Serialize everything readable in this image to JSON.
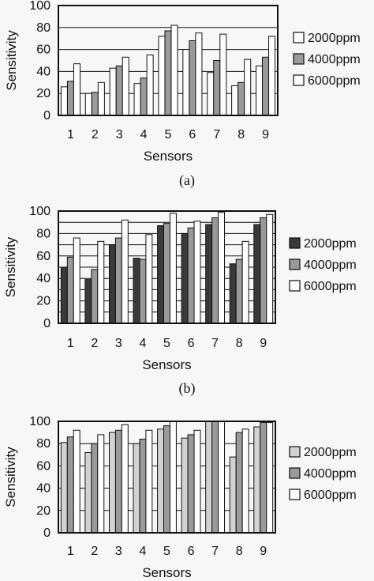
{
  "legend_entries": [
    "2000ppm",
    "4000ppm",
    "6000ppm"
  ],
  "colors": {
    "dark": "#3a3a3a",
    "gray": "#9a9a9a",
    "light": "#d2d2d2",
    "white": "#ffffff",
    "ink": "#111111"
  },
  "chart_data": [
    {
      "type": "bar",
      "panel_label": "(a)",
      "xlabel": "Sensors",
      "ylabel": "Sensitivity",
      "categories": [
        "1",
        "2",
        "3",
        "4",
        "5",
        "6",
        "7",
        "8",
        "9"
      ],
      "ylim": [
        0,
        100
      ],
      "yticks": [
        0,
        20,
        40,
        60,
        80,
        100
      ],
      "legend_position": "right",
      "bar_colors": [
        "#ffffff",
        "#9a9a9a",
        "#ffffff"
      ],
      "series": [
        {
          "name": "2000ppm",
          "values": [
            26,
            20,
            43,
            29,
            72,
            60,
            39,
            27,
            45
          ]
        },
        {
          "name": "4000ppm",
          "values": [
            31,
            21,
            45,
            34,
            77,
            68,
            50,
            30,
            53
          ]
        },
        {
          "name": "6000ppm",
          "values": [
            47,
            30,
            53,
            55,
            82,
            75,
            74,
            51,
            72
          ]
        }
      ]
    },
    {
      "type": "bar",
      "panel_label": "(b)",
      "xlabel": "Sensors",
      "ylabel": "Sensitivity",
      "categories": [
        "1",
        "2",
        "3",
        "4",
        "5",
        "6",
        "7",
        "8",
        "9"
      ],
      "ylim": [
        0,
        100
      ],
      "yticks": [
        0,
        10,
        20,
        30,
        40,
        50,
        60,
        70,
        80,
        90,
        100
      ],
      "ytick_labels": [
        "0",
        "",
        "20",
        "",
        "40",
        "",
        "60",
        "",
        "80",
        "",
        "100"
      ],
      "legend_position": "right",
      "bar_colors": [
        "#3a3a3a",
        "#9a9a9a",
        "#ffffff"
      ],
      "series": [
        {
          "name": "2000ppm",
          "values": [
            50,
            39,
            70,
            58,
            87,
            80,
            88,
            53,
            88
          ]
        },
        {
          "name": "4000ppm",
          "values": [
            59,
            48,
            76,
            57,
            89,
            85,
            94,
            57,
            94
          ]
        },
        {
          "name": "6000ppm",
          "values": [
            76,
            73,
            92,
            79,
            98,
            91,
            99,
            73,
            97
          ]
        }
      ]
    },
    {
      "type": "bar",
      "panel_label": "",
      "xlabel": "Sensors",
      "ylabel": "Sensitivity",
      "categories": [
        "1",
        "2",
        "3",
        "4",
        "5",
        "6",
        "7",
        "8",
        "9"
      ],
      "ylim": [
        0,
        100
      ],
      "yticks": [
        0,
        20,
        40,
        60,
        80,
        100
      ],
      "legend_position": "right",
      "bar_colors": [
        "#d2d2d2",
        "#9a9a9a",
        "#ffffff"
      ],
      "series": [
        {
          "name": "2000ppm",
          "values": [
            81,
            72,
            90,
            80,
            93,
            85,
            100,
            68,
            95
          ]
        },
        {
          "name": "4000ppm",
          "values": [
            86,
            80,
            92,
            84,
            96,
            88,
            100,
            90,
            99
          ]
        },
        {
          "name": "6000ppm",
          "values": [
            92,
            88,
            97,
            92,
            100,
            92,
            100,
            93,
            99
          ]
        }
      ]
    }
  ]
}
